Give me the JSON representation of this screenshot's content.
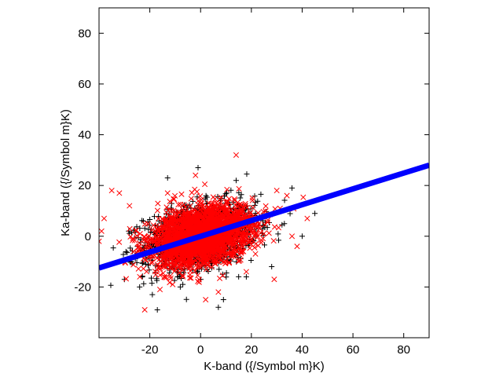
{
  "chart_data": {
    "type": "scatter",
    "title": "",
    "xlabel": "K-band ({/Symbol m}K)",
    "ylabel": "Ka-band ({/Symbol m}K)",
    "xlim": [
      -40,
      90
    ],
    "ylim": [
      -40,
      90
    ],
    "xticks": [
      -20,
      0,
      20,
      40,
      60,
      80
    ],
    "yticks": [
      -20,
      0,
      20,
      40,
      60,
      80
    ],
    "grid": false,
    "legend": "none",
    "series": [
      {
        "marker": "plus",
        "color": "#000000",
        "cloud": {
          "n": 1400,
          "mean_x": 0,
          "mean_y": 0,
          "sd_x": 11,
          "sd_y": 6.5,
          "corr": 0.3
        },
        "points": [
          [
            -1,
            27
          ],
          [
            -13,
            23
          ],
          [
            14,
            22
          ],
          [
            36,
            19
          ],
          [
            45,
            9
          ],
          [
            40,
            0
          ],
          [
            -30,
            -17
          ],
          [
            -24,
            -20
          ],
          [
            -19,
            -23
          ],
          [
            -7,
            -19
          ],
          [
            7,
            -28
          ],
          [
            9,
            -25
          ],
          [
            -8,
            -20
          ],
          [
            18,
            -16
          ],
          [
            28,
            -12
          ]
        ]
      },
      {
        "marker": "cross",
        "color": "#ff0000",
        "cloud": {
          "n": 2400,
          "mean_x": 0,
          "mean_y": 0,
          "sd_x": 10,
          "sd_y": 6,
          "corr": 0.3
        },
        "points": [
          [
            14,
            32
          ],
          [
            -2,
            24
          ],
          [
            -35,
            18
          ],
          [
            -32,
            17
          ],
          [
            -38,
            7
          ],
          [
            -39,
            2
          ],
          [
            -40,
            -2
          ],
          [
            -22,
            -29
          ],
          [
            -16,
            -21
          ],
          [
            -11,
            -19
          ],
          [
            2,
            -25
          ],
          [
            7,
            -22
          ],
          [
            18,
            -14
          ],
          [
            29,
            -17
          ],
          [
            38,
            -4
          ],
          [
            36,
            0
          ],
          [
            42,
            7
          ],
          [
            -13,
            17
          ],
          [
            30,
            18
          ],
          [
            34,
            16
          ],
          [
            -28,
            12
          ]
        ]
      }
    ],
    "fit_line": {
      "color": "#0000ff",
      "points": [
        [
          -40,
          -12.5
        ],
        [
          90,
          28
        ]
      ]
    }
  }
}
